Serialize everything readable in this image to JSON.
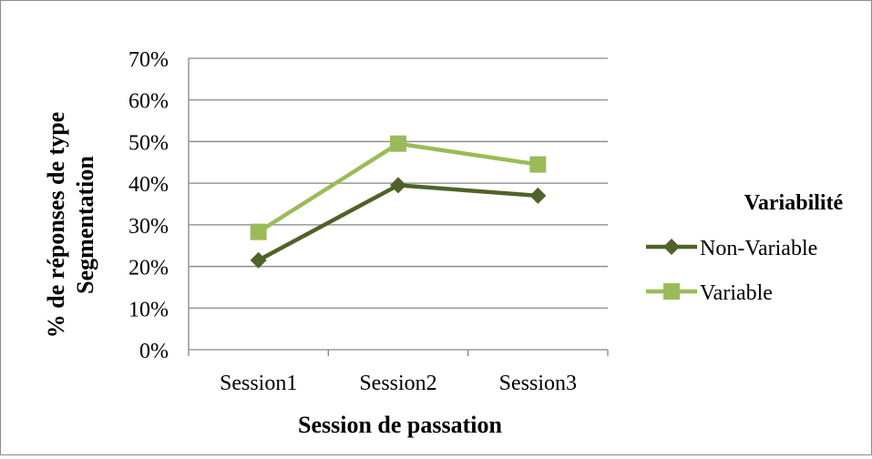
{
  "chart_data": {
    "type": "line",
    "categories": [
      "Session1",
      "Session2",
      "Session3"
    ],
    "series": [
      {
        "name": "Non-Variable",
        "values": [
          21.5,
          39.5,
          37
        ],
        "color": "#4f6228",
        "marker": "diamond"
      },
      {
        "name": "Variable",
        "values": [
          28.3,
          49.5,
          44.5
        ],
        "color": "#9bbb59",
        "marker": "square"
      }
    ],
    "ylim": [
      0,
      70
    ],
    "yticks": [
      0,
      10,
      20,
      30,
      40,
      50,
      60,
      70
    ],
    "ytick_labels": [
      "0%",
      "10%",
      "20%",
      "30%",
      "40%",
      "50%",
      "60%",
      "70%"
    ],
    "xlabel": "Session de passation",
    "ylabel_lines": [
      "% de réponses de type",
      "Segmentation"
    ],
    "legend_title": "Variabilité",
    "legend_position": "right",
    "grid": true,
    "gridline_color": "#868686"
  }
}
